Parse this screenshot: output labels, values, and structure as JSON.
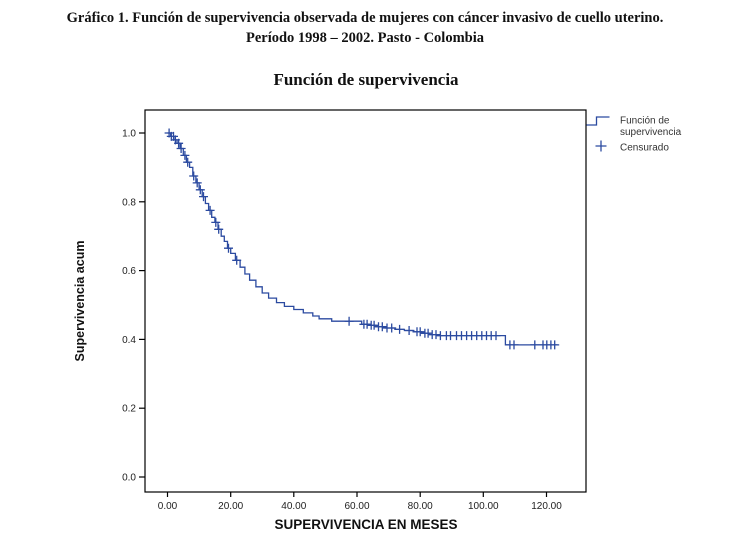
{
  "figure": {
    "caption_line1": "Gráfico 1. Función de supervivencia observada de mujeres con cáncer invasivo de cuello uterino.",
    "caption_line2": "Período 1998 – 2002. Pasto - Colombia"
  },
  "chart_data": {
    "type": "line",
    "subtype": "kaplan-meier-step",
    "title": "Función de supervivencia",
    "xlabel": "SUPERVIVENCIA EN MESES",
    "ylabel": "Supervivencia acum",
    "xlim": [
      0,
      130
    ],
    "ylim": [
      0,
      1.0
    ],
    "grid": false,
    "line_color": "#2b4aa0",
    "x_ticks": {
      "values": [
        0,
        20,
        40,
        60,
        80,
        100,
        120
      ],
      "labels": [
        "0.00",
        "20.00",
        "40.00",
        "60.00",
        "80.00",
        "100.00",
        "120.00"
      ]
    },
    "y_ticks": {
      "values": [
        0.0,
        0.2,
        0.4,
        0.6,
        0.8,
        1.0
      ],
      "labels": [
        "0.0",
        "0.2",
        "0.4",
        "0.6",
        "0.8",
        "1.0"
      ]
    },
    "legend": {
      "position": "top-right-outside",
      "entries": [
        {
          "label": "Función de supervivencia",
          "lines": [
            "Función de",
            "supervivencia"
          ],
          "symbol": "step-line"
        },
        {
          "label": "Censurado",
          "lines": [
            "Censurado"
          ],
          "symbol": "plus"
        }
      ]
    },
    "series": [
      {
        "name": "Función de supervivencia",
        "steps": [
          [
            0,
            1.0
          ],
          [
            1,
            0.99
          ],
          [
            2,
            0.98
          ],
          [
            3,
            0.97
          ],
          [
            4,
            0.955
          ],
          [
            5,
            0.935
          ],
          [
            6,
            0.915
          ],
          [
            7,
            0.9
          ],
          [
            8,
            0.875
          ],
          [
            9,
            0.855
          ],
          [
            10,
            0.835
          ],
          [
            11,
            0.815
          ],
          [
            12,
            0.795
          ],
          [
            13,
            0.775
          ],
          [
            14,
            0.755
          ],
          [
            15,
            0.74
          ],
          [
            16,
            0.72
          ],
          [
            17,
            0.7
          ],
          [
            18,
            0.685
          ],
          [
            19,
            0.665
          ],
          [
            20,
            0.65
          ],
          [
            21.5,
            0.63
          ],
          [
            23,
            0.61
          ],
          [
            24.5,
            0.59
          ],
          [
            26,
            0.572
          ],
          [
            28,
            0.553
          ],
          [
            30,
            0.535
          ],
          [
            32,
            0.52
          ],
          [
            34.5,
            0.507
          ],
          [
            37,
            0.496
          ],
          [
            40,
            0.487
          ],
          [
            43,
            0.477
          ],
          [
            46,
            0.468
          ],
          [
            48,
            0.46
          ],
          [
            52,
            0.453
          ],
          [
            61.5,
            0.444
          ],
          [
            64,
            0.441
          ],
          [
            66,
            0.437
          ],
          [
            69,
            0.433
          ],
          [
            72,
            0.429
          ],
          [
            75,
            0.426
          ],
          [
            78,
            0.422
          ],
          [
            80.5,
            0.418
          ],
          [
            83,
            0.414
          ],
          [
            85.5,
            0.411
          ],
          [
            107,
            0.384
          ]
        ],
        "end_time": 123.5
      }
    ],
    "censored_times": [
      0.5,
      1.2,
      1.9,
      2.5,
      3.5,
      4.3,
      5.5,
      6.4,
      8.3,
      9.4,
      10.4,
      11.4,
      13.5,
      15.3,
      16.2,
      19.3,
      21.9,
      57.5,
      62.2,
      63.2,
      64.5,
      65.4,
      66.8,
      68,
      69.5,
      71,
      73.5,
      76.5,
      79,
      80,
      81.5,
      82.5,
      83.8,
      85,
      86.4,
      88.3,
      89.6,
      91.5,
      93.1,
      94.7,
      96.3,
      97.9,
      99.5,
      101,
      102.5,
      104,
      108.4,
      109.7,
      116.3,
      118.9,
      120.1,
      121.4,
      122.6
    ]
  }
}
